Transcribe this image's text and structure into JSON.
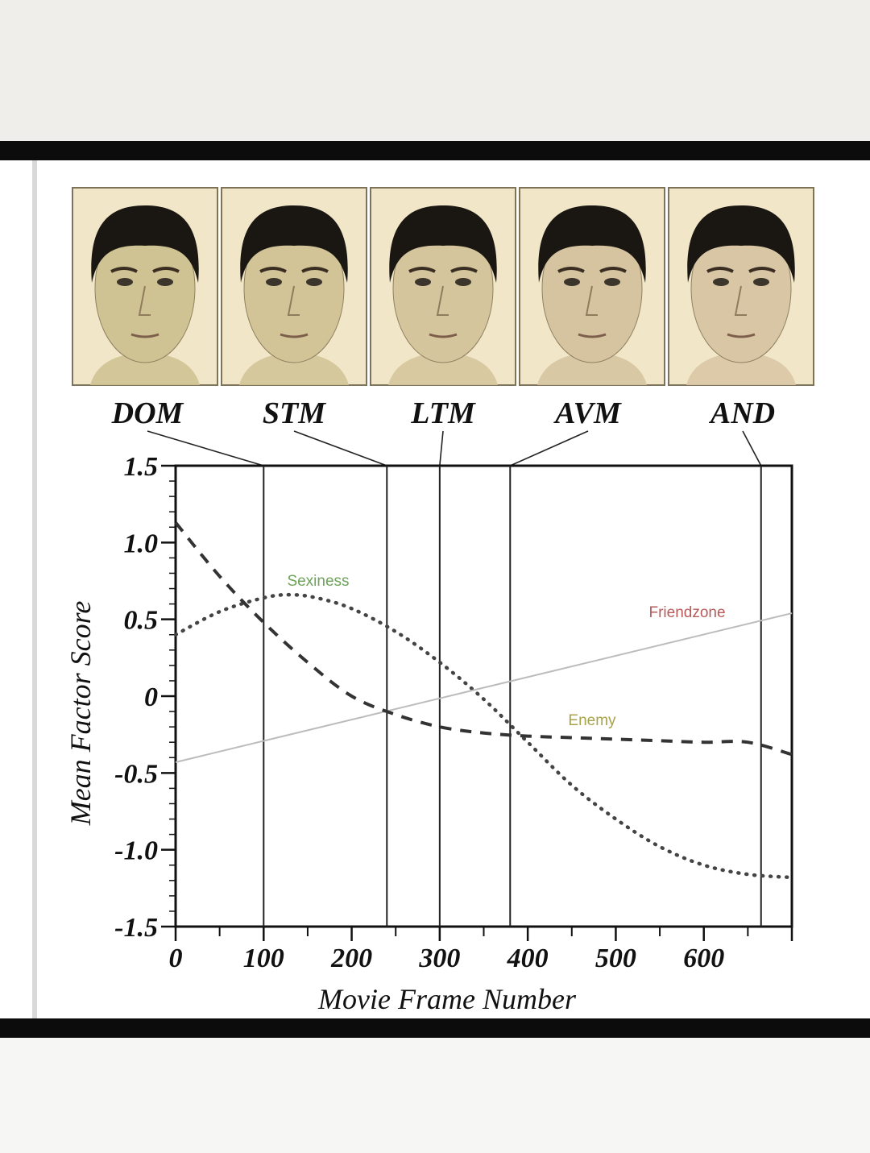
{
  "faces": [
    {
      "label": "DOM",
      "frame": 100,
      "skin": "#cfc393"
    },
    {
      "label": "STM",
      "frame": 240,
      "skin": "#d2c497"
    },
    {
      "label": "LTM",
      "frame": 300,
      "skin": "#d5c59c"
    },
    {
      "label": "AVM",
      "frame": 380,
      "skin": "#d6c4a0"
    },
    {
      "label": "AND",
      "frame": 665,
      "skin": "#d9c6a5"
    }
  ],
  "chart_data": {
    "type": "line",
    "xlabel": "Movie Frame Number",
    "ylabel": "Mean Factor Score",
    "xlim": [
      0,
      700
    ],
    "ylim": [
      -1.5,
      1.5
    ],
    "x_ticks": [
      0,
      100,
      200,
      300,
      400,
      500,
      600
    ],
    "y_ticks": [
      "1.5",
      "1.0",
      "0.5",
      "0",
      "-0.5",
      "-1.0",
      "-1.5"
    ],
    "y_tick_values": [
      1.5,
      1.0,
      0.5,
      0,
      -0.5,
      -1.0,
      -1.5
    ],
    "vertical_lines": [
      100,
      240,
      300,
      380,
      665
    ],
    "series": [
      {
        "name": "Sexiness",
        "style": "dotted",
        "label_color": "#6ea35a",
        "x": [
          0,
          50,
          100,
          130,
          160,
          200,
          250,
          300,
          350,
          400,
          450,
          500,
          550,
          600,
          650,
          700
        ],
        "y": [
          0.4,
          0.55,
          0.64,
          0.66,
          0.64,
          0.57,
          0.42,
          0.22,
          -0.02,
          -0.3,
          -0.58,
          -0.8,
          -0.98,
          -1.1,
          -1.16,
          -1.18
        ]
      },
      {
        "name": "Friendzone",
        "style": "solid",
        "label_color": "#b85a5a",
        "x": [
          0,
          700
        ],
        "y": [
          -0.43,
          0.54
        ]
      },
      {
        "name": "Enemy",
        "style": "dashed",
        "label_color": "#a8a24a",
        "x": [
          0,
          50,
          100,
          150,
          200,
          250,
          300,
          350,
          400,
          450,
          500,
          550,
          600,
          650,
          700
        ],
        "y": [
          1.13,
          0.78,
          0.48,
          0.22,
          0.0,
          -0.12,
          -0.2,
          -0.24,
          -0.26,
          -0.27,
          -0.28,
          -0.29,
          -0.3,
          -0.3,
          -0.38
        ]
      }
    ]
  }
}
